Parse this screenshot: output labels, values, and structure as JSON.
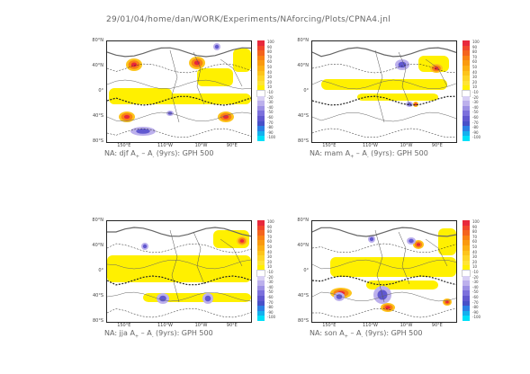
{
  "header": "29/01/04/home/dan/WORK/Experiments/NAforcing/Plots/CPNA4.jnl",
  "lat_ticks": [
    "80°N",
    "40°N",
    "0°",
    "40°S",
    "80°S"
  ],
  "lon_ticks": [
    "150°E",
    "110°W",
    "10°W",
    "90°E"
  ],
  "colorbar": {
    "labels": [
      "100",
      "90",
      "80",
      "70",
      "60",
      "50",
      "40",
      "30",
      "20",
      "10",
      "-10",
      "-20",
      "-30",
      "-40",
      "-50",
      "-60",
      "-70",
      "-80",
      "-90",
      "-100"
    ],
    "colors": [
      "#e8283c",
      "#f0462c",
      "#f4641e",
      "#f88214",
      "#fa9a10",
      "#fcb014",
      "#fdc41c",
      "#fed628",
      "#ffe436",
      "#fff000",
      "#ffffff",
      "#d8d0f4",
      "#bcb0ec",
      "#9c90e4",
      "#7c70dc",
      "#6058d0",
      "#4850c8",
      "#2c80e4",
      "#16b0ee",
      "#00e0f8"
    ]
  },
  "panels": [
    {
      "caption_pre": "NA: djf A",
      "caption_post": " (9yrs): GPH 500",
      "sub1": "+",
      "sub2": "-"
    },
    {
      "caption_pre": "NA: mam A",
      "caption_post": " (9yrs): GPH 500",
      "sub1": "+",
      "sub2": "-"
    },
    {
      "caption_pre": "NA: jja A",
      "caption_post": " (9yrs): GPH 500",
      "sub1": "+",
      "sub2": "-"
    },
    {
      "caption_pre": "NA: son A",
      "caption_post": " (9yrs): GPH 500",
      "sub1": "+",
      "sub2": "-"
    }
  ],
  "chart_data": [
    {
      "type": "heatmap",
      "title": "NA: djf A+ - A- (9yrs): GPH 500",
      "xlabel": "",
      "ylabel": "",
      "color_range": [
        -100,
        100
      ],
      "features": "positive anomalies over North Pacific and North Atlantic, negative over Southern Ocean"
    },
    {
      "type": "heatmap",
      "title": "NA: mam A+ - A- (9yrs): GPH 500",
      "xlabel": "",
      "ylabel": "",
      "color_range": [
        -100,
        100
      ],
      "features": "weak positive tropical band, positive N. Atlantic, negative near 60°N"
    },
    {
      "type": "heatmap",
      "title": "NA: jja A+ - A- (9yrs): GPH 500",
      "xlabel": "",
      "ylabel": "",
      "color_range": [
        -100,
        100
      ],
      "features": "broad positive tropical band, negative centers in southern midlatitudes"
    },
    {
      "type": "heatmap",
      "title": "NA: son A+ - A- (9yrs): GPH 500",
      "xlabel": "",
      "ylabel": "",
      "color_range": [
        -100,
        100
      ],
      "features": "positive tropical band, strong dipole in South Pacific"
    }
  ]
}
